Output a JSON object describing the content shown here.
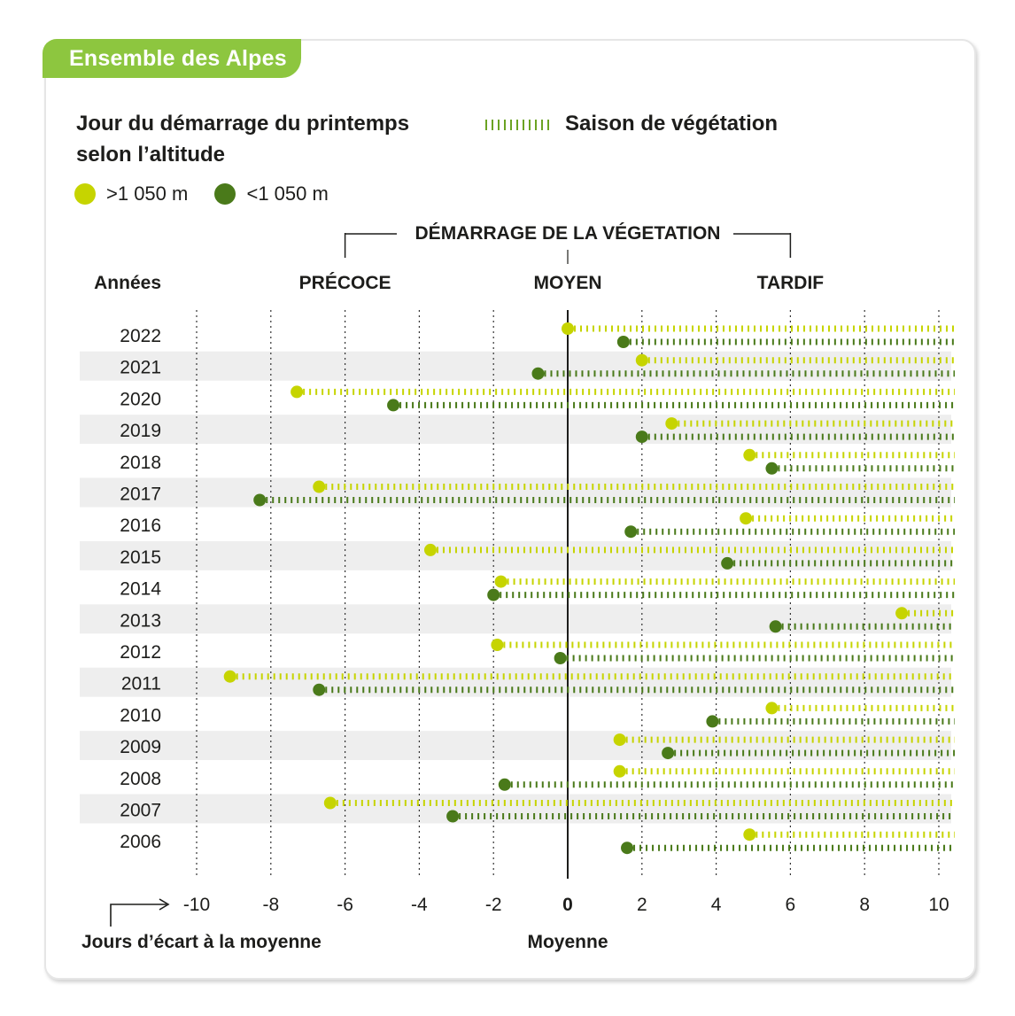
{
  "header": {
    "tag": "Ensemble des Alpes",
    "title_line1": "Jour du démarrage du printemps",
    "title_line2": "selon l’altitude",
    "season_label": "Saison de végétation",
    "legend_high": ">1 050 m",
    "legend_low": "<1 050 m"
  },
  "colors": {
    "high": "#c6d400",
    "low": "#4a7a1a",
    "season_high": "#c6d400",
    "season_low": "#4a7a1a",
    "tag_bg": "#8dc63f",
    "band": "#eeeeee"
  },
  "chart_data": {
    "type": "scatter",
    "title": "DÉMARRAGE DE LA VÉGETATION",
    "category_labels": [
      "PRÉCOCE",
      "MOYEN",
      "TARDIF"
    ],
    "row_header": "Années",
    "xlabel": "Jours d’écart à la moyenne",
    "zero_label": "Moyenne",
    "xlim": [
      -10,
      10.4
    ],
    "xticks": [
      -10,
      -8,
      -6,
      -4,
      -2,
      0,
      2,
      4,
      6,
      8,
      10
    ],
    "grid": true,
    "years": [
      "2022",
      "2021",
      "2020",
      "2019",
      "2018",
      "2017",
      "2016",
      "2015",
      "2014",
      "2013",
      "2012",
      "2011",
      "2010",
      "2009",
      "2008",
      "2007",
      "2006"
    ],
    "series": [
      {
        "name": ">1 050 m",
        "values": [
          0.0,
          2.0,
          -7.3,
          2.8,
          4.9,
          -6.7,
          4.8,
          -3.7,
          -1.8,
          9.0,
          -1.9,
          -9.1,
          5.5,
          1.4,
          1.4,
          -6.4,
          4.9
        ]
      },
      {
        "name": "<1 050 m",
        "values": [
          1.5,
          -0.8,
          -4.7,
          2.0,
          5.5,
          -8.3,
          1.7,
          4.3,
          -2.0,
          5.6,
          -0.2,
          -6.7,
          3.9,
          2.7,
          -1.7,
          -3.1,
          1.6
        ]
      }
    ]
  }
}
